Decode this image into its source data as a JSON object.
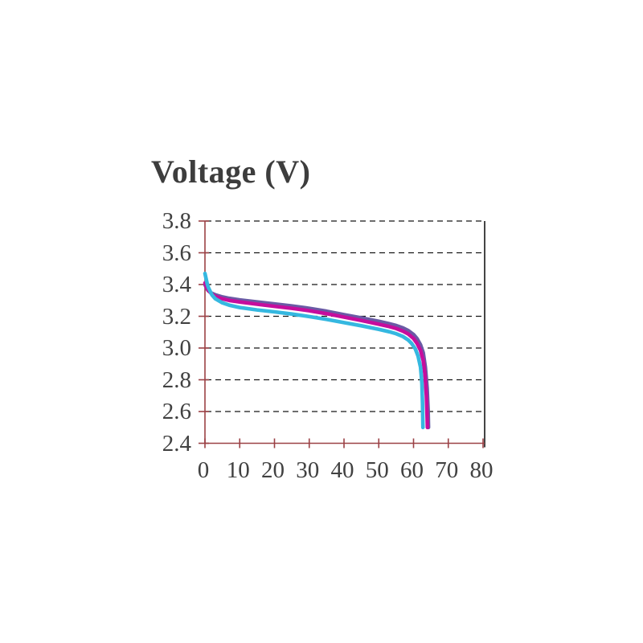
{
  "chart_data": {
    "type": "line",
    "title": "Voltage (V)",
    "xlabel": "",
    "ylabel": "Voltage (V)",
    "xlim": [
      0,
      80
    ],
    "ylim": [
      2.4,
      3.8
    ],
    "x_tick_labels": [
      "0",
      "10",
      "20",
      "30",
      "40",
      "50",
      "60",
      "70",
      "80"
    ],
    "y_tick_labels": [
      "2.4",
      "2.6",
      "2.8",
      "3.0",
      "3.2",
      "3.4",
      "3.6",
      "3.8"
    ],
    "grid": "horizontal dashed",
    "legend_position": "none",
    "colors": {
      "axis_line": "#9b4145",
      "grid_line": "#161616",
      "right_border": "#161616",
      "tick_text": "#414141",
      "title_text": "#3d3d3d",
      "series_purple": "#6a5aa5",
      "series_magenta": "#c60d9d",
      "series_cyan": "#35b8e0"
    },
    "series": [
      {
        "name": "discharge-curve-purple",
        "color": "#6a5aa5",
        "points": [
          [
            0,
            3.4
          ],
          [
            0.5,
            3.375
          ],
          [
            1,
            3.36
          ],
          [
            2,
            3.345
          ],
          [
            3,
            3.335
          ],
          [
            5,
            3.322
          ],
          [
            7,
            3.313
          ],
          [
            10,
            3.303
          ],
          [
            15,
            3.29
          ],
          [
            20,
            3.278
          ],
          [
            25,
            3.265
          ],
          [
            30,
            3.25
          ],
          [
            35,
            3.232
          ],
          [
            40,
            3.21
          ],
          [
            45,
            3.19
          ],
          [
            50,
            3.168
          ],
          [
            53,
            3.153
          ],
          [
            55,
            3.142
          ],
          [
            57,
            3.126
          ],
          [
            58.5,
            3.11
          ],
          [
            60,
            3.085
          ],
          [
            61,
            3.06
          ],
          [
            62,
            3.02
          ],
          [
            62.8,
            2.97
          ],
          [
            63.4,
            2.88
          ],
          [
            63.9,
            2.75
          ],
          [
            64.2,
            2.6
          ],
          [
            64.3,
            2.5
          ]
        ]
      },
      {
        "name": "discharge-curve-magenta",
        "color": "#c60d9d",
        "points": [
          [
            0,
            3.41
          ],
          [
            0.5,
            3.38
          ],
          [
            1,
            3.362
          ],
          [
            2,
            3.34
          ],
          [
            3,
            3.325
          ],
          [
            5,
            3.31
          ],
          [
            7,
            3.3
          ],
          [
            10,
            3.29
          ],
          [
            15,
            3.276
          ],
          [
            20,
            3.263
          ],
          [
            25,
            3.25
          ],
          [
            30,
            3.235
          ],
          [
            35,
            3.216
          ],
          [
            40,
            3.195
          ],
          [
            45,
            3.173
          ],
          [
            50,
            3.15
          ],
          [
            53,
            3.135
          ],
          [
            55,
            3.123
          ],
          [
            57,
            3.106
          ],
          [
            58.5,
            3.088
          ],
          [
            60,
            3.06
          ],
          [
            61,
            3.03
          ],
          [
            62,
            2.985
          ],
          [
            62.8,
            2.92
          ],
          [
            63.3,
            2.83
          ],
          [
            63.7,
            2.7
          ],
          [
            63.9,
            2.57
          ],
          [
            64,
            2.5
          ]
        ]
      },
      {
        "name": "discharge-curve-cyan",
        "color": "#35b8e0",
        "points": [
          [
            0,
            3.47
          ],
          [
            0.3,
            3.44
          ],
          [
            0.7,
            3.4
          ],
          [
            1,
            3.38
          ],
          [
            2,
            3.335
          ],
          [
            3,
            3.31
          ],
          [
            5,
            3.285
          ],
          [
            7,
            3.27
          ],
          [
            10,
            3.255
          ],
          [
            15,
            3.24
          ],
          [
            20,
            3.228
          ],
          [
            25,
            3.214
          ],
          [
            30,
            3.198
          ],
          [
            35,
            3.18
          ],
          [
            40,
            3.16
          ],
          [
            45,
            3.14
          ],
          [
            50,
            3.118
          ],
          [
            53,
            3.103
          ],
          [
            55,
            3.09
          ],
          [
            57,
            3.072
          ],
          [
            58.5,
            3.05
          ],
          [
            59.5,
            3.028
          ],
          [
            60.5,
            2.995
          ],
          [
            61.3,
            2.95
          ],
          [
            62,
            2.88
          ],
          [
            62.4,
            2.78
          ],
          [
            62.6,
            2.65
          ],
          [
            62.7,
            2.5
          ]
        ]
      }
    ]
  }
}
